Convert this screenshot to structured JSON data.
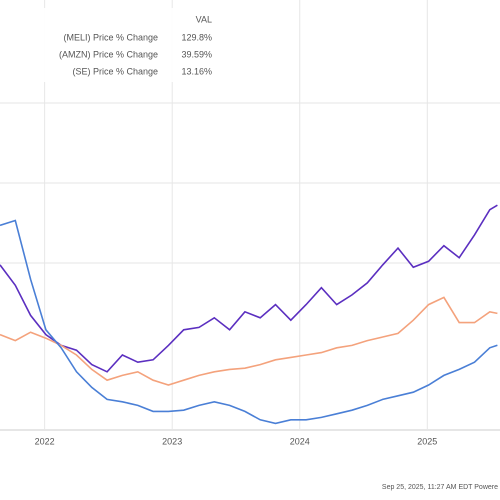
{
  "chart_data": {
    "type": "line",
    "legend_header": "VAL",
    "x": [
      2021.65,
      2021.77,
      2021.89,
      2022.01,
      2022.13,
      2022.25,
      2022.37,
      2022.49,
      2022.61,
      2022.73,
      2022.85,
      2022.97,
      2023.09,
      2023.21,
      2023.33,
      2023.45,
      2023.57,
      2023.69,
      2023.81,
      2023.93,
      2024.05,
      2024.17,
      2024.29,
      2024.41,
      2024.53,
      2024.65,
      2024.77,
      2024.89,
      2025.01,
      2025.13,
      2025.25,
      2025.37,
      2025.49,
      2025.55
    ],
    "xlim": [
      2021.65,
      2025.57
    ],
    "xticks": [
      2022,
      2023,
      2024,
      2025
    ],
    "ylim": [
      -57.5,
      300.7
    ],
    "grid": true,
    "series": [
      {
        "name": "(MELI) Price % Change",
        "value_label": "129.8%",
        "color": "#5b2fc0",
        "values": [
          80,
          63,
          38,
          22,
          13,
          9,
          -3,
          -9,
          5,
          -1,
          1,
          13,
          26,
          28,
          36,
          26,
          41,
          36,
          47,
          34,
          47,
          61,
          47,
          55,
          65,
          80,
          94,
          78,
          83,
          96,
          86,
          105,
          126,
          129.8
        ]
      },
      {
        "name": "(AMZN) Price % Change",
        "value_label": "39.59%",
        "color": "#f4a27c",
        "values": [
          22,
          17,
          24,
          19,
          13,
          5,
          -7,
          -16,
          -12,
          -9,
          -16,
          -20,
          -16,
          -12,
          -9,
          -7,
          -6,
          -3,
          1,
          3,
          5,
          7,
          11,
          13,
          17,
          20,
          23,
          34,
          47,
          53,
          32,
          32,
          41,
          39.59
        ]
      },
      {
        "name": "(SE) Price % Change",
        "value_label": "13.16%",
        "color": "#4a7fd6",
        "values": [
          113,
          117,
          68,
          26,
          11,
          -9,
          -22,
          -32,
          -34,
          -37,
          -42,
          -42,
          -41,
          -37,
          -34,
          -37,
          -42,
          -49,
          -52,
          -49,
          -49,
          -47,
          -44,
          -41,
          -37,
          -32,
          -29,
          -26,
          -20,
          -12,
          -7,
          -1,
          11,
          13.16
        ]
      }
    ],
    "footer": "Sep 25, 2025, 11:27 AM EDT Powere"
  }
}
